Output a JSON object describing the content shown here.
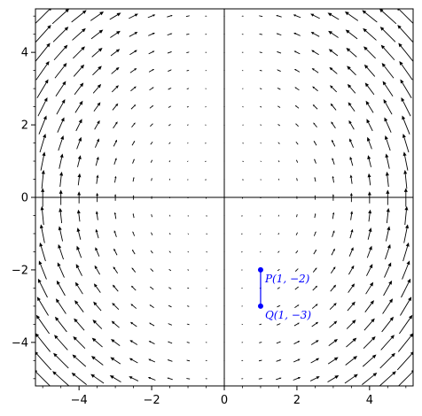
{
  "chart_data": {
    "type": "vector-field",
    "title": "",
    "xlabel": "",
    "ylabel": "",
    "xlim": [
      -5.2,
      5.2
    ],
    "ylim": [
      -5.2,
      5.2
    ],
    "xticks": [
      -4,
      -2,
      0,
      2,
      4
    ],
    "yticks": [
      -4,
      -2,
      0,
      2,
      4
    ],
    "xtick_labels": [
      "−4",
      "−2",
      "0",
      "2",
      "4"
    ],
    "ytick_labels": [
      "−4",
      "−2",
      "0",
      "2",
      "4"
    ],
    "grid": false,
    "field": {
      "expression": "F(x, y) = (-x·y, x²)",
      "grid_range": [
        -5,
        5
      ],
      "grid_count": 21,
      "arrow_color": "#000000"
    },
    "points": [
      {
        "name": "P",
        "x": 1,
        "y": -2,
        "label": "P(1, −2)"
      },
      {
        "name": "Q",
        "x": 1,
        "y": -3,
        "label": "Q(1, −3)"
      }
    ],
    "segment": {
      "from": "P",
      "to": "Q",
      "color": "#0000ff"
    },
    "point_color": "#0000ff"
  }
}
